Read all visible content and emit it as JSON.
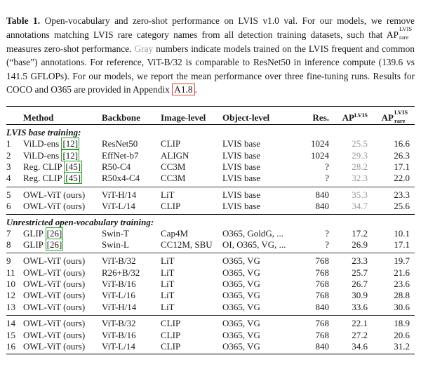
{
  "colors": {
    "citation_green": "#2aa02a",
    "link_red": "#e0442a",
    "gray_number": "#9c9c9c"
  },
  "caption": {
    "label": "Table 1.",
    "segment_1": " Open-vocabulary and zero-shot performance on LVIS v1.0 val. For our models, we remove annotations matching LVIS rare category names from all detection training datasets, such that ",
    "ap_notation": {
      "base": "AP",
      "sup": "LVIS",
      "sub": "rare"
    },
    "segment_2": " measures zero-shot performance. ",
    "gray_word": "Gray",
    "segment_3": " numbers indicate models trained on the LVIS frequent and common (“base”) annotations. For reference, ViT-B/32 is comparable to ResNet50 in inference compute (139.6 vs 141.5 GFLOPs). For our models, we report the mean performance over three fine-tuning runs. Results for COCO and O365 are provided in Appendix ",
    "appendix_ref": "A1.8",
    "period": "."
  },
  "table": {
    "headers": {
      "method": "Method",
      "backbone": "Backbone",
      "image_level": "Image-level",
      "object_level": "Object-level",
      "res": "Res.",
      "ap_lvis": {
        "base": "AP",
        "sup": "LVIS"
      },
      "ap_lvis_rare": {
        "base": "AP",
        "sup": "LVIS",
        "sub": "rare"
      }
    },
    "sections": [
      {
        "title": "LVIS base training:",
        "groups": [
          {
            "rows": [
              {
                "num": "1",
                "method": "ViLD-ens",
                "cite": "[12]",
                "backbone": "ResNet50",
                "image_level": "CLIP",
                "object_level": "LVIS base",
                "res": "1024",
                "ap": "25.5",
                "ap_gray": true,
                "ap_rare": "16.6"
              },
              {
                "num": "2",
                "method": "ViLD-ens",
                "cite": "[12]",
                "backbone": "EffNet-b7",
                "image_level": "ALIGN",
                "object_level": "LVIS base",
                "res": "1024",
                "ap": "29.3",
                "ap_gray": true,
                "ap_rare": "26.3"
              },
              {
                "num": "3",
                "method": "Reg. CLIP",
                "cite": "[45]",
                "backbone": "R50-C4",
                "image_level": "CC3M",
                "object_level": "LVIS base",
                "res": "?",
                "ap": "28.2",
                "ap_gray": true,
                "ap_rare": "17.1"
              },
              {
                "num": "4",
                "method": "Reg. CLIP",
                "cite": "[45]",
                "backbone": "R50x4-C4",
                "image_level": "CC3M",
                "object_level": "LVIS base",
                "res": "?",
                "ap": "32.3",
                "ap_gray": true,
                "ap_rare": "22.0"
              }
            ]
          },
          {
            "rows": [
              {
                "num": "5",
                "method": "OWL-ViT (ours)",
                "cite": "",
                "backbone": "ViT-H/14",
                "image_level": "LiT",
                "object_level": "LVIS base",
                "res": "840",
                "ap": "35.3",
                "ap_gray": true,
                "ap_rare": "23.3"
              },
              {
                "num": "6",
                "method": "OWL-ViT (ours)",
                "cite": "",
                "backbone": "ViT-L/14",
                "image_level": "CLIP",
                "object_level": "LVIS base",
                "res": "840",
                "ap": "34.7",
                "ap_gray": true,
                "ap_rare": "25.6"
              }
            ]
          }
        ]
      },
      {
        "title": "Unrestricted open-vocabulary training:",
        "groups": [
          {
            "rows": [
              {
                "num": "7",
                "method": "GLIP",
                "cite": "[26]",
                "backbone": "Swin-T",
                "image_level": "Cap4M",
                "object_level": "O365, GoldG, ...",
                "res": "?",
                "ap": "17.2",
                "ap_gray": false,
                "ap_rare": "10.1"
              },
              {
                "num": "8",
                "method": "GLIP",
                "cite": "[26]",
                "backbone": "Swin-L",
                "image_level": "CC12M, SBU",
                "object_level": "OI, O365, VG, ...",
                "res": "?",
                "ap": "26.9",
                "ap_gray": false,
                "ap_rare": "17.1"
              }
            ]
          },
          {
            "rows": [
              {
                "num": "9",
                "method": "OWL-ViT (ours)",
                "cite": "",
                "backbone": "ViT-B/32",
                "image_level": "LiT",
                "object_level": "O365, VG",
                "res": "768",
                "ap": "23.3",
                "ap_gray": false,
                "ap_rare": "19.7"
              },
              {
                "num": "11",
                "method": "OWL-ViT (ours)",
                "cite": "",
                "backbone": "R26+B/32",
                "image_level": "LiT",
                "object_level": "O365, VG",
                "res": "768",
                "ap": "25.7",
                "ap_gray": false,
                "ap_rare": "21.6"
              },
              {
                "num": "10",
                "method": "OWL-ViT (ours)",
                "cite": "",
                "backbone": "ViT-B/16",
                "image_level": "LiT",
                "object_level": "O365, VG",
                "res": "768",
                "ap": "26.7",
                "ap_gray": false,
                "ap_rare": "23.6"
              },
              {
                "num": "12",
                "method": "OWL-ViT (ours)",
                "cite": "",
                "backbone": "ViT-L/16",
                "image_level": "LiT",
                "object_level": "O365, VG",
                "res": "768",
                "ap": "30.9",
                "ap_gray": false,
                "ap_rare": "28.8"
              },
              {
                "num": "13",
                "method": "OWL-ViT (ours)",
                "cite": "",
                "backbone": "ViT-H/14",
                "image_level": "LiT",
                "object_level": "O365, VG",
                "res": "840",
                "ap": "33.6",
                "ap_gray": false,
                "ap_rare": "30.6"
              }
            ]
          },
          {
            "rows": [
              {
                "num": "14",
                "method": "OWL-ViT (ours)",
                "cite": "",
                "backbone": "ViT-B/32",
                "image_level": "CLIP",
                "object_level": "O365, VG",
                "res": "768",
                "ap": "22.1",
                "ap_gray": false,
                "ap_rare": "18.9"
              },
              {
                "num": "15",
                "method": "OWL-ViT (ours)",
                "cite": "",
                "backbone": "ViT-B/16",
                "image_level": "CLIP",
                "object_level": "O365, VG",
                "res": "768",
                "ap": "27.2",
                "ap_gray": false,
                "ap_rare": "20.6"
              },
              {
                "num": "16",
                "method": "OWL-ViT (ours)",
                "cite": "",
                "backbone": "ViT-L/14",
                "image_level": "CLIP",
                "object_level": "O365, VG",
                "res": "840",
                "ap": "34.6",
                "ap_gray": false,
                "ap_rare": "31.2"
              }
            ]
          }
        ]
      }
    ]
  }
}
